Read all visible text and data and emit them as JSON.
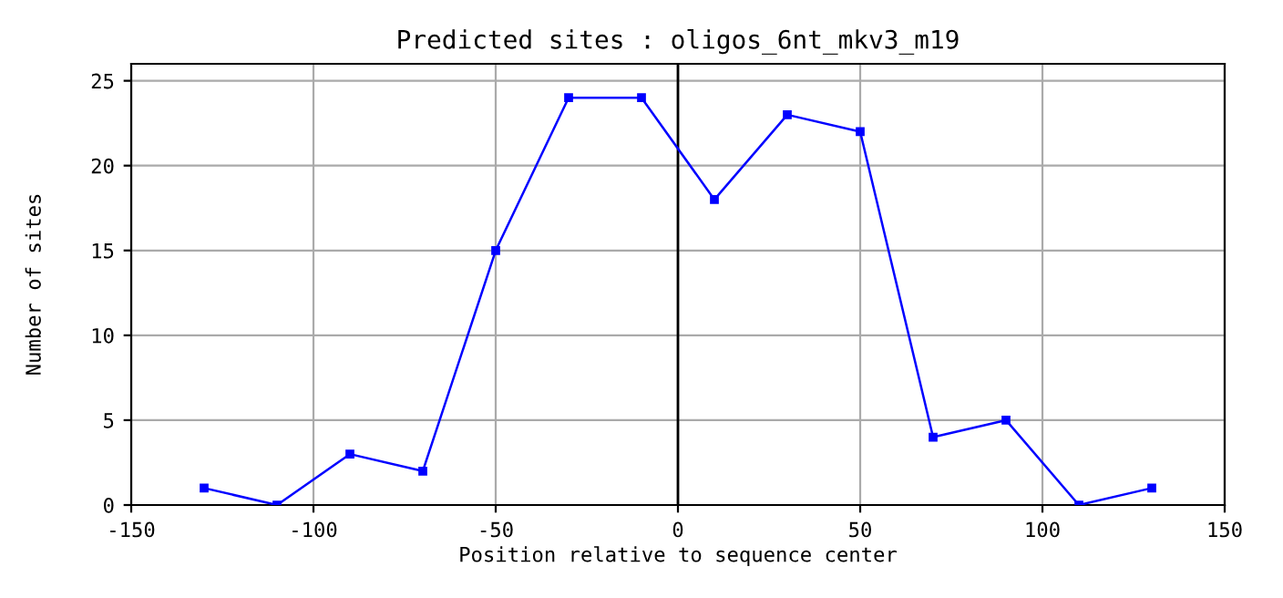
{
  "chart_data": {
    "type": "line",
    "title": "Predicted sites : oligos_6nt_mkv3_m19",
    "xlabel": "Position relative to sequence center",
    "ylabel": "Number of sites",
    "x": [
      -130,
      -110,
      -90,
      -70,
      -50,
      -30,
      -10,
      10,
      30,
      50,
      70,
      90,
      110,
      130
    ],
    "series": [
      {
        "color": "#0000ff",
        "values": [
          1,
          0,
          3,
          2,
          15,
          24,
          24,
          18,
          23,
          22,
          4,
          5,
          0,
          1
        ]
      }
    ],
    "xlim": [
      -150,
      150
    ],
    "xticks": [
      -150,
      -100,
      -50,
      0,
      50,
      100,
      150
    ],
    "ylim": [
      0,
      26
    ],
    "yticks": [
      0,
      5,
      10,
      15,
      20,
      25
    ],
    "grid": true,
    "marker": "square",
    "line_style": "solid",
    "ref_lines": [
      {
        "axis": "x",
        "value": 0,
        "color": "#000000"
      }
    ]
  }
}
